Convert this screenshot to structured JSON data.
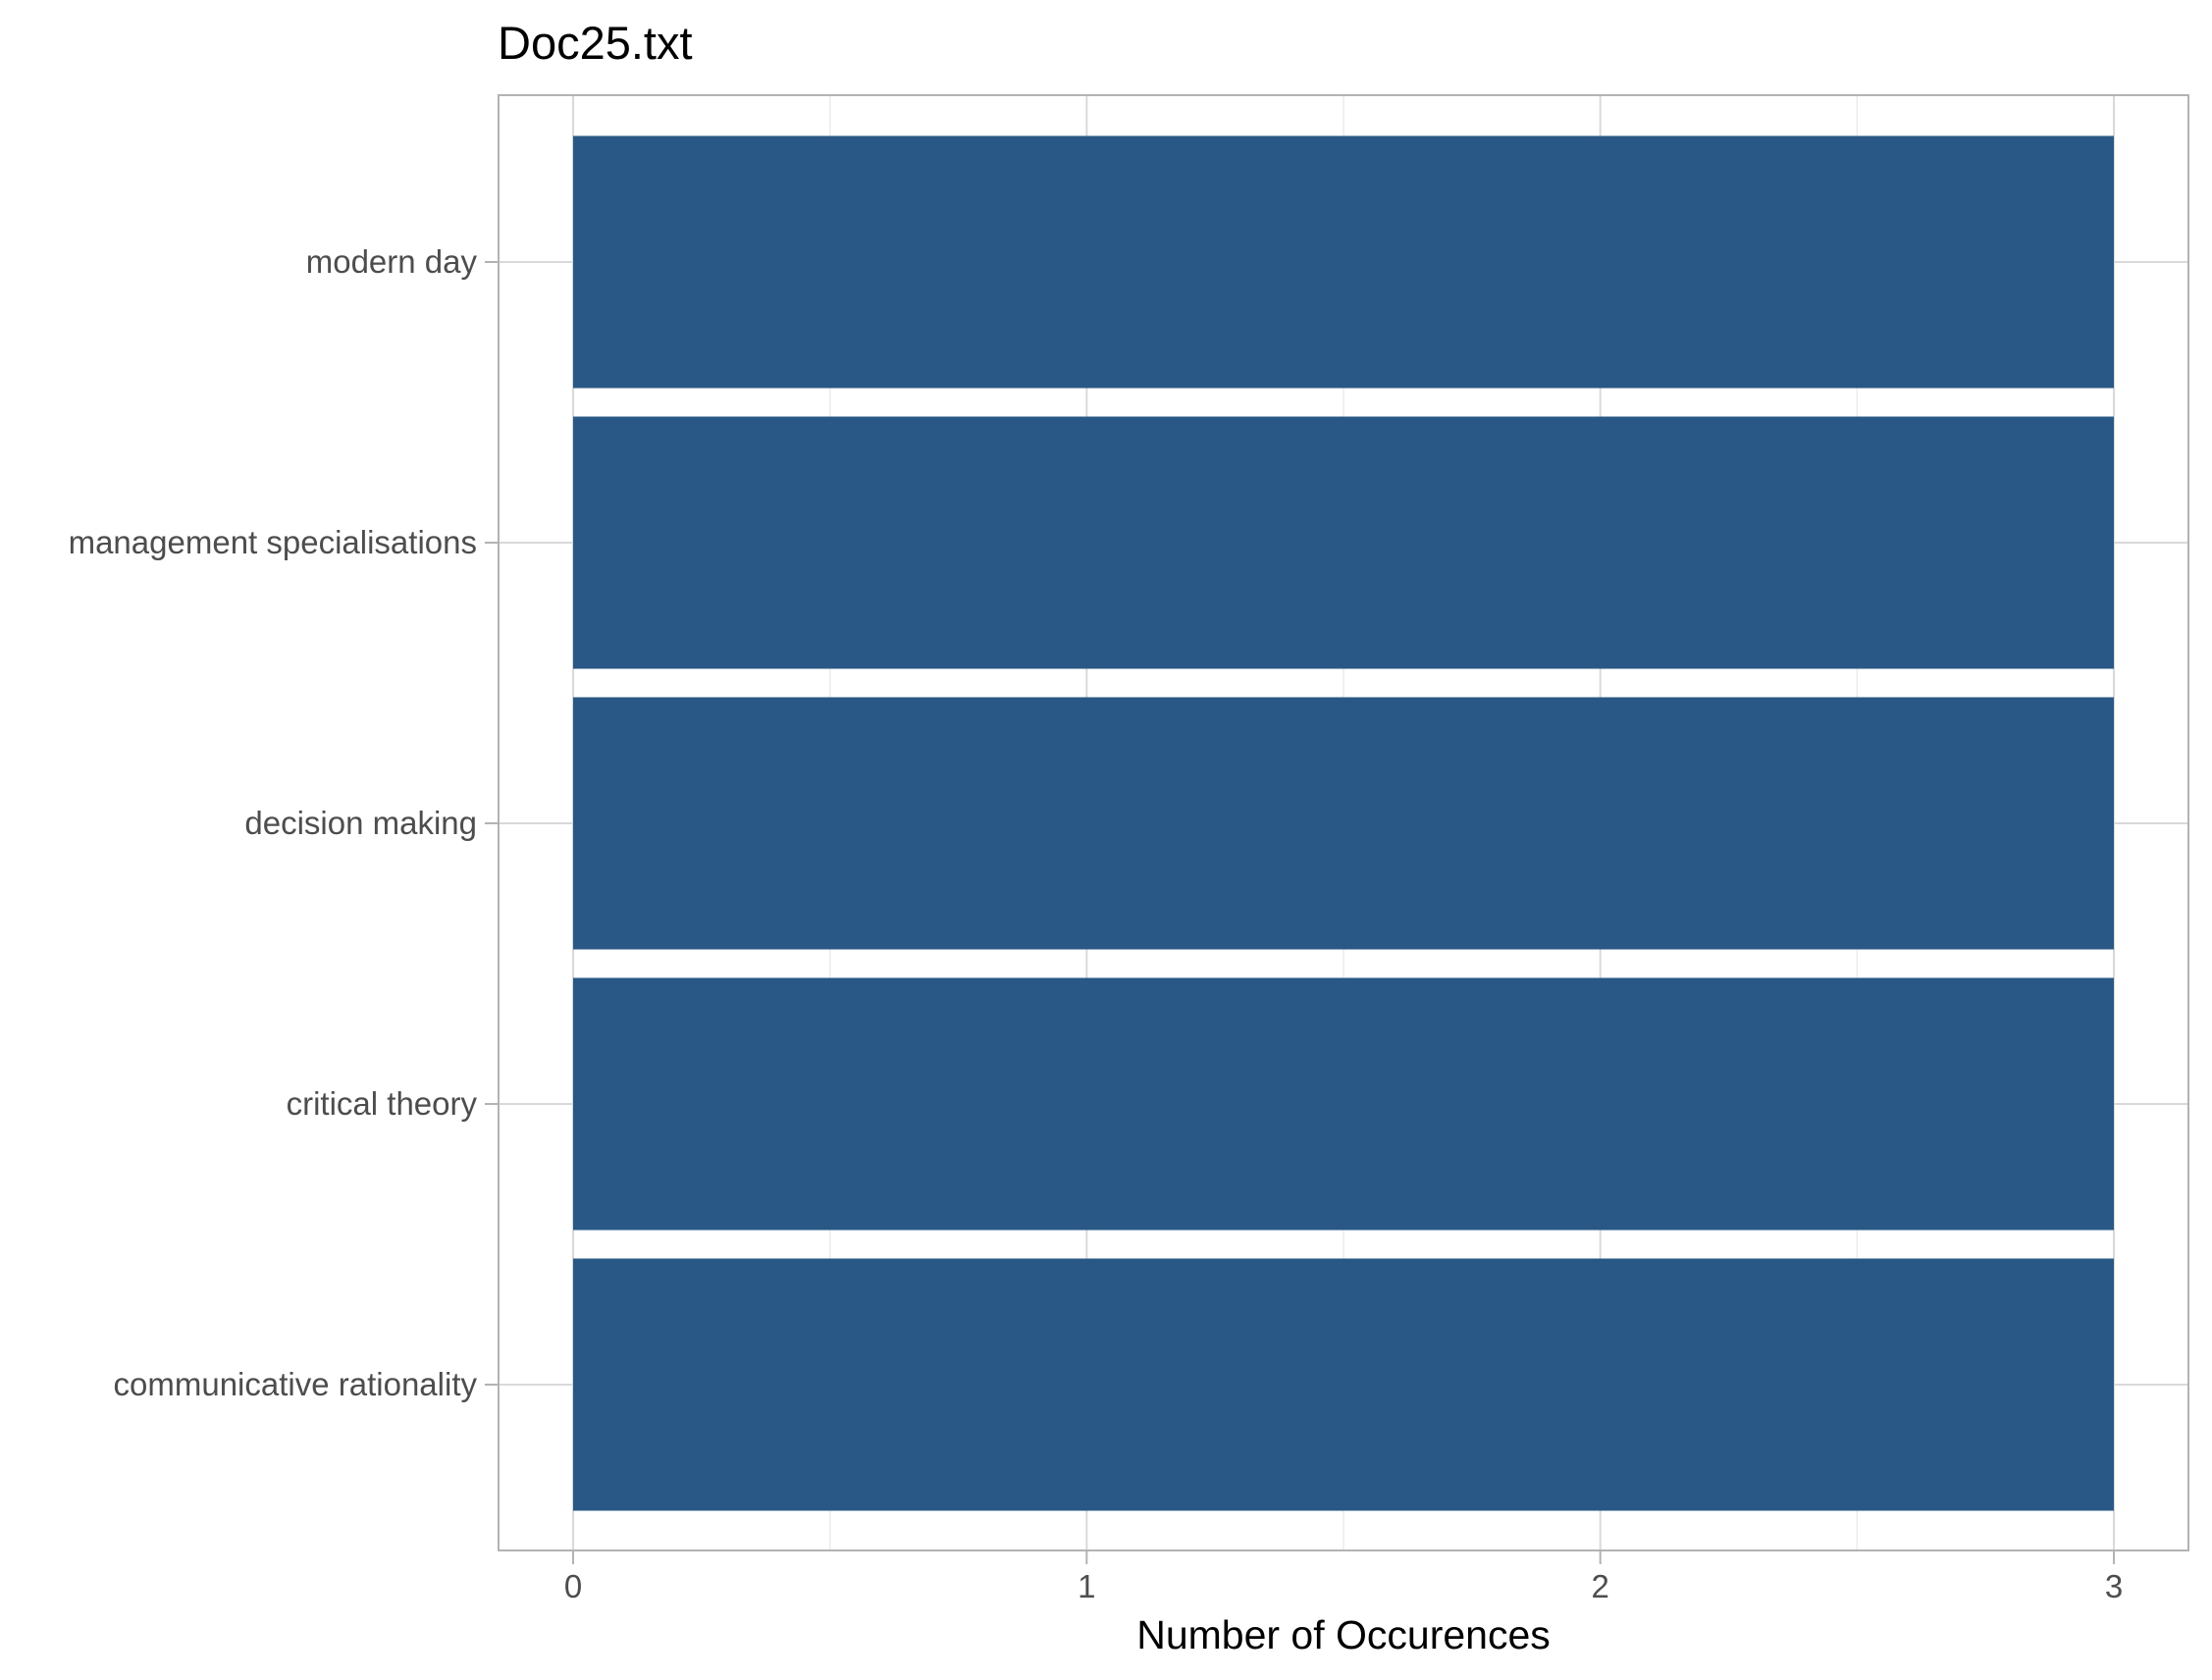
{
  "chart_data": {
    "type": "bar",
    "orientation": "horizontal",
    "title": "Doc25.txt",
    "xlabel": "Number of Occurences",
    "ylabel": "",
    "categories": [
      "modern day",
      "management specialisations",
      "decision making",
      "critical theory",
      "communicative rationality"
    ],
    "values": [
      3,
      3,
      3,
      3,
      3
    ],
    "xlim": [
      0,
      3
    ],
    "xticks": [
      0,
      1,
      2,
      3
    ],
    "grid": true,
    "legend": "none",
    "bar_color": "#2a5886"
  }
}
